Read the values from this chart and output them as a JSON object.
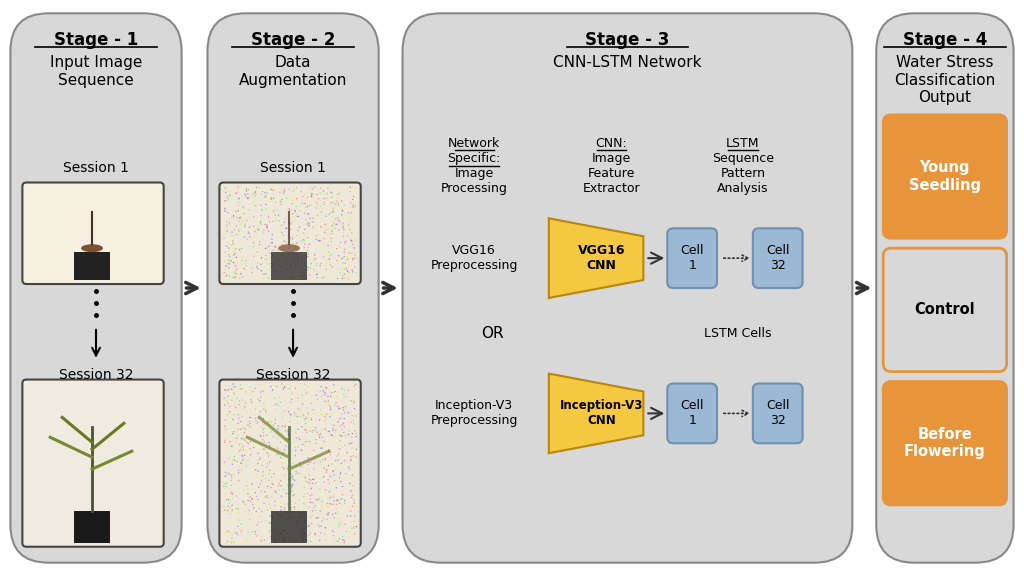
{
  "fig_bg": "#ffffff",
  "stage_box_color": "#d8d8d8",
  "stage_box_edge": "#888888",
  "orange_color": "#E8943A",
  "blue_cell_color": "#9BB8D4",
  "blue_cell_edge": "#7090b0",
  "cnn_trapezoid_color": "#F5C842",
  "cnn_trapezoid_edge": "#b8860b",
  "black": "#000000",
  "arrow_color": "#333333",
  "stages": [
    "Stage - 1",
    "Stage - 2",
    "Stage - 3",
    "Stage - 4"
  ],
  "stage1_subtitle": "Input Image\nSequence",
  "stage2_subtitle": "Data\nAugmentation",
  "stage3_subtitle": "CNN-LSTM Network",
  "stage4_subtitle": "Water Stress\nClassification\nOutput",
  "col1_header": "Network\nSpecific:\nImage\nProcessing",
  "col2_header": "CNN:\nImage\nFeature\nExtractor",
  "col3_header": "LSTM\nSequence\nPattern\nAnalysis",
  "vgg_preproc": "VGG16\nPreprocessing",
  "vgg_cnn": "VGG16\nCNN",
  "inception_preproc": "Inception-V3\nPreprocessing",
  "inception_cnn": "Inception-V3\nCNN",
  "cell1_label": "Cell\n1",
  "cell32_label": "Cell\n32",
  "or_label": "OR",
  "lstm_cells_label": "LSTM Cells",
  "session1_label": "Session 1",
  "session32_label": "Session 32",
  "output_labels": [
    "Before\nFlowering",
    "Control",
    "Young\nSeedling"
  ],
  "output_colors": [
    "#E8943A",
    "#d8d8d8",
    "#E8943A"
  ],
  "output_text_colors": [
    "#ffffff",
    "#000000",
    "#ffffff"
  ]
}
